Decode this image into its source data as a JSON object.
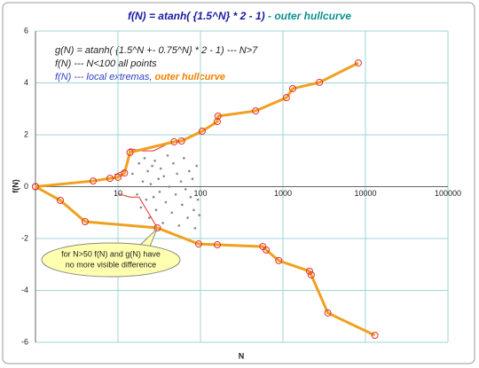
{
  "chart_data": {
    "type": "line",
    "title": "f(N) = atanh( {1.5^N} * 2 - 1)",
    "subtitle": "- outer hullcurve",
    "x_label": "N",
    "y_label": "f(N)",
    "annotations": [
      {
        "text": "g(N) = atanh( {1.5^N +- 0.75^N} * 2 - 1)  ---  N>7",
        "color": "#e03030"
      },
      {
        "text": "f(N) --- N<100  all points",
        "color": "#a8a8a8"
      },
      {
        "text": "f(N) --- local extremas,",
        "color": "#2f3fc0"
      },
      {
        "text": "outer hullcurve",
        "color": "#f08000"
      }
    ],
    "callout": [
      "for N>50 f(N) and g(N) have",
      "no more visible difference"
    ],
    "xscale": "log",
    "xlim": [
      1,
      100000
    ],
    "xticks": [
      10,
      100,
      1000,
      10000,
      100000
    ],
    "ylim": [
      -6,
      6
    ],
    "yticks": [
      -6,
      -4,
      -2,
      0,
      2,
      4,
      6
    ],
    "grid": true,
    "series": [
      {
        "style": "points",
        "color": "#888888",
        "x": [
          15,
          17,
          18,
          19,
          20,
          21,
          22,
          23,
          24,
          25,
          26,
          27,
          28,
          29,
          31,
          32,
          33,
          35,
          36,
          38,
          40,
          42,
          45,
          47,
          50,
          52,
          55,
          58,
          60,
          63,
          66,
          70,
          73,
          76,
          80,
          83,
          86,
          90,
          93,
          97
        ],
        "values": [
          0.5,
          -0.3,
          0.9,
          -0.8,
          0.2,
          1.1,
          -0.5,
          0.6,
          -1.2,
          0.1,
          0.8,
          -0.4,
          1.0,
          -0.9,
          0.3,
          -0.2,
          0.7,
          -1.4,
          0.4,
          -0.6,
          1.2,
          0.0,
          -1.0,
          0.9,
          -0.3,
          0.5,
          -1.5,
          0.2,
          -0.7,
          1.1,
          -0.1,
          -1.2,
          0.6,
          -0.4,
          0.3,
          -0.9,
          -1.6,
          0.8,
          -0.5,
          -1.1
        ]
      },
      {
        "style": "line",
        "color": "#e03030",
        "x": [
          9,
          12,
          14,
          20,
          27,
          45
        ],
        "values": [
          0.45,
          0.62,
          1.46,
          1.38,
          1.38,
          1.73
        ]
      },
      {
        "style": "line",
        "color": "#e03030",
        "x": [
          10,
          14,
          18,
          30
        ],
        "values": [
          -0.27,
          -0.4,
          -0.4,
          -1.59
        ]
      },
      {
        "style": "line-markers",
        "color": "#f0a020",
        "marker_color": "#e03030",
        "x": [
          1,
          5,
          8,
          10,
          12,
          14,
          48,
          59,
          105,
          160,
          163,
          466,
          1100,
          1310,
          2770,
          8200
        ],
        "values": [
          0,
          0.22,
          0.32,
          0.36,
          0.53,
          1.32,
          1.73,
          1.76,
          2.14,
          2.51,
          2.72,
          2.92,
          3.43,
          3.78,
          4.02,
          4.77
        ]
      },
      {
        "style": "line-markers",
        "color": "#f0a020",
        "marker_color": "#e03030",
        "x": [
          1,
          2,
          4,
          30,
          95,
          160,
          570,
          625,
          890,
          2100,
          2200,
          3500,
          13000
        ],
        "values": [
          0,
          -0.53,
          -1.35,
          -1.59,
          -2.21,
          -2.24,
          -2.31,
          -2.44,
          -2.85,
          -3.26,
          -3.4,
          -4.87,
          -5.73
        ]
      }
    ]
  }
}
